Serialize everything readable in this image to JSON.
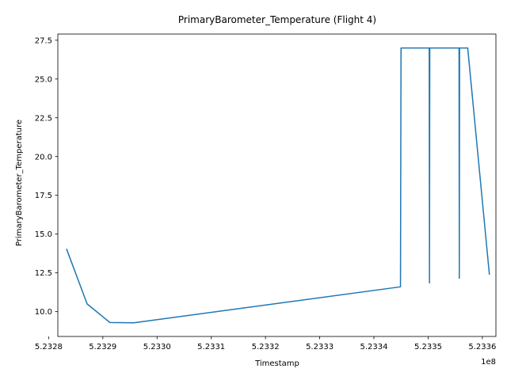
{
  "chart_data": {
    "type": "line",
    "title": "PrimaryBarometer_Temperature (Flight 4)",
    "xlabel": "Timestamp",
    "ylabel": "PrimaryBarometer_Temperature",
    "x_offset_label": "1e8",
    "x_multiplier": 100000000,
    "xlim": [
      5.232817,
      5.233625
    ],
    "ylim": [
      8.4,
      27.9
    ],
    "grid": false,
    "legend": "none",
    "line_color": "#1f77b4",
    "xticks": [
      {
        "value": 5.2328,
        "label": "5.2328"
      },
      {
        "value": 5.2329,
        "label": "5.2329"
      },
      {
        "value": 5.233,
        "label": "5.2330"
      },
      {
        "value": 5.2331,
        "label": "5.2331"
      },
      {
        "value": 5.2332,
        "label": "5.2332"
      },
      {
        "value": 5.2333,
        "label": "5.2333"
      },
      {
        "value": 5.2334,
        "label": "5.2334"
      },
      {
        "value": 5.2335,
        "label": "5.2335"
      },
      {
        "value": 5.2336,
        "label": "5.2336"
      }
    ],
    "yticks": [
      {
        "value": 10.0,
        "label": "10.0"
      },
      {
        "value": 12.5,
        "label": "12.5"
      },
      {
        "value": 15.0,
        "label": "15.0"
      },
      {
        "value": 17.5,
        "label": "17.5"
      },
      {
        "value": 20.0,
        "label": "20.0"
      },
      {
        "value": 22.5,
        "label": "22.5"
      },
      {
        "value": 25.0,
        "label": "25.0"
      },
      {
        "value": 27.5,
        "label": "27.5"
      }
    ],
    "series": [
      {
        "x": [
          523283300,
          523287100,
          523291300,
          523295700,
          523344900,
          523345000,
          523350200,
          523350250,
          523350300,
          523355700,
          523355750,
          523355800,
          523357300,
          523361300
        ],
        "y": [
          14.05,
          10.5,
          9.3,
          9.28,
          11.6,
          27.0,
          27.0,
          11.85,
          27.0,
          27.0,
          12.15,
          27.0,
          27.0,
          12.38
        ]
      }
    ]
  }
}
